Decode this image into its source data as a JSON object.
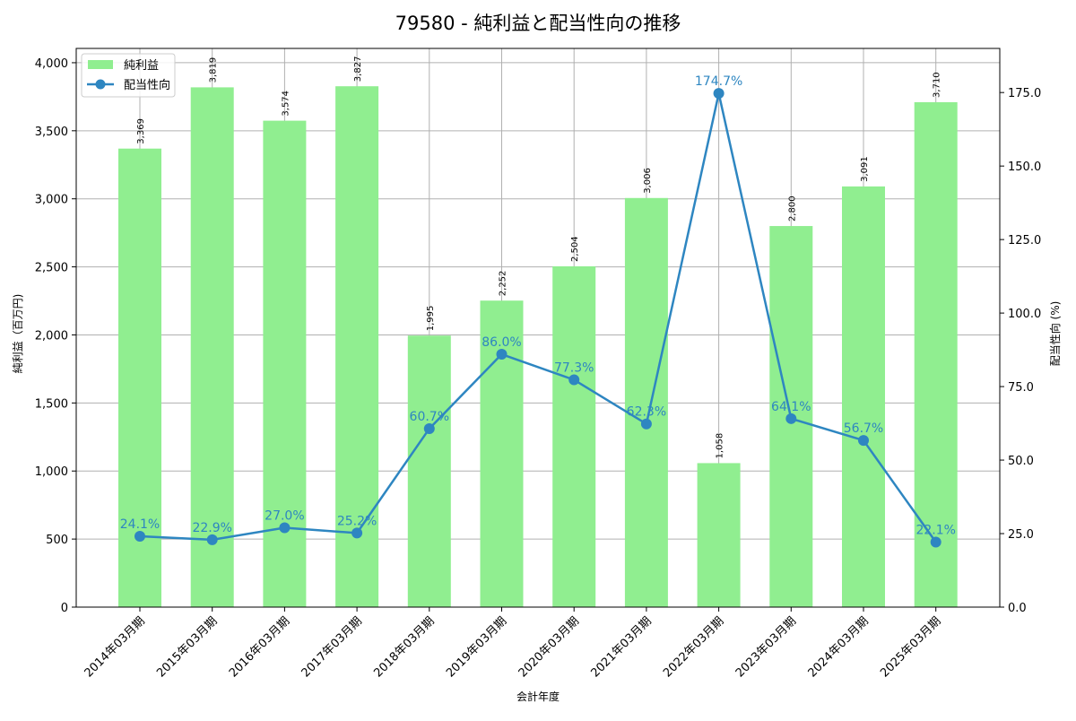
{
  "chart_data": {
    "type": "bar+line",
    "title": "79580 - 純利益と配当性向の推移",
    "xlabel": "会計年度",
    "ylabel_left": "純利益（百万円)",
    "ylabel_right": "配当性向 (%)",
    "categories": [
      "2014年03月期",
      "2015年03月期",
      "2016年03月期",
      "2017年03月期",
      "2018年03月期",
      "2019年03月期",
      "2020年03月期",
      "2021年03月期",
      "2022年03月期",
      "2023年03月期",
      "2024年03月期",
      "2025年03月期"
    ],
    "series": [
      {
        "name": "純利益",
        "type": "bar",
        "axis": "left",
        "color": "#90ee90",
        "values": [
          3369,
          3819,
          3574,
          3827,
          1995,
          2252,
          2504,
          3006,
          1058,
          2800,
          3091,
          3710
        ],
        "labels": [
          "3,369",
          "3,819",
          "3,574",
          "3,827",
          "1,995",
          "2,252",
          "2,504",
          "3,006",
          "1,058",
          "2,800",
          "3,091",
          "3,710"
        ]
      },
      {
        "name": "配当性向",
        "type": "line",
        "axis": "right",
        "color": "#2e86c1",
        "values": [
          24.1,
          22.9,
          27.0,
          25.2,
          60.7,
          86.0,
          77.3,
          62.3,
          174.7,
          64.1,
          56.7,
          22.1
        ],
        "labels": [
          "24.1%",
          "22.9%",
          "27.0%",
          "25.2%",
          "60.7%",
          "86.0%",
          "77.3%",
          "62.3%",
          "174.7%",
          "64.1%",
          "56.7%",
          "22.1%"
        ]
      }
    ],
    "ylim_left": [
      0,
      4105
    ],
    "ylim_right": [
      0,
      190
    ],
    "yticks_left": [
      0,
      500,
      1000,
      1500,
      2000,
      2500,
      3000,
      3500,
      4000
    ],
    "yticks_left_labels": [
      "0",
      "500",
      "1,000",
      "1,500",
      "2,000",
      "2,500",
      "3,000",
      "3,500",
      "4,000"
    ],
    "yticks_right": [
      0,
      25,
      50,
      75,
      100,
      125,
      150,
      175
    ],
    "yticks_right_labels": [
      "0.0",
      "25.0",
      "50.0",
      "75.0",
      "100.0",
      "125.0",
      "150.0",
      "175.0"
    ],
    "grid": true,
    "legend": {
      "position": "upper left",
      "entries": [
        "純利益",
        "配当性向"
      ]
    }
  }
}
